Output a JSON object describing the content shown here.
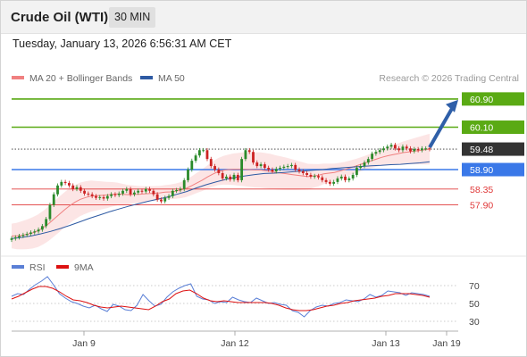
{
  "header": {
    "title": "Crude Oil (WTI)",
    "timeframe": "30 MIN"
  },
  "timestamp": "Tuesday, January 13, 2026 6:56:31 AM CET",
  "legend": [
    {
      "label": "MA 20 + Bollinger Bands",
      "color": "#f08080"
    },
    {
      "label": "MA 50",
      "color": "#2e5aa3"
    }
  ],
  "source": "Research © 2026 Trading Central",
  "rsi_legend": [
    {
      "label": "RSI",
      "color": "#5a7fd6"
    },
    {
      "label": "9MA",
      "color": "#dd1111"
    }
  ],
  "chart_data": [
    {
      "type": "candlestick",
      "title": "Crude Oil (WTI)",
      "timeframe": "30 MIN",
      "ylim": [
        56.5,
        61.2
      ],
      "x_tick_labels": [
        "Jan 9",
        "Jan 12",
        "Jan 13",
        "Jan 19"
      ],
      "levels": [
        {
          "value": 60.9,
          "label": "60.90",
          "kind": "resistance",
          "color": "#5aaa14"
        },
        {
          "value": 60.1,
          "label": "60.10",
          "kind": "resistance",
          "color": "#5aaa14"
        },
        {
          "value": 59.48,
          "label": "59.48",
          "kind": "last price",
          "color": "#333333"
        },
        {
          "value": 58.9,
          "label": "58.90",
          "kind": "pivot",
          "color": "#3a78e8"
        },
        {
          "value": 58.35,
          "label": "58.35",
          "kind": "support",
          "color": "#e03a3a"
        },
        {
          "value": 57.9,
          "label": "57.90",
          "kind": "support",
          "color": "#e03a3a"
        }
      ],
      "close": [
        56.95,
        56.98,
        57.02,
        57.05,
        57.08,
        57.12,
        57.15,
        57.2,
        57.3,
        57.5,
        57.9,
        58.2,
        58.45,
        58.55,
        58.52,
        58.45,
        58.35,
        58.4,
        58.3,
        58.22,
        58.2,
        58.15,
        58.1,
        58.12,
        58.08,
        58.15,
        58.2,
        58.18,
        58.22,
        58.3,
        58.35,
        58.2,
        58.25,
        58.3,
        58.28,
        58.35,
        58.3,
        58.2,
        58.05,
        58.0,
        58.1,
        58.15,
        58.3,
        58.32,
        58.35,
        58.6,
        58.9,
        59.15,
        59.3,
        59.45,
        59.45,
        59.2,
        59.0,
        58.9,
        58.8,
        58.65,
        58.7,
        58.62,
        58.75,
        58.6,
        59.2,
        59.45,
        59.4,
        59.1,
        59.0,
        59.05,
        58.95,
        58.9,
        58.85,
        58.92,
        58.95,
        58.98,
        59.0,
        59.03,
        58.9,
        58.85,
        58.8,
        58.75,
        58.7,
        58.72,
        58.68,
        58.6,
        58.55,
        58.5,
        58.55,
        58.65,
        58.7,
        58.6,
        58.65,
        58.75,
        58.95,
        59.0,
        59.1,
        59.2,
        59.35,
        59.4,
        59.45,
        59.5,
        59.55,
        59.6,
        59.5,
        59.45,
        59.55,
        59.5,
        59.42,
        59.48,
        59.45,
        59.5,
        59.5,
        59.48
      ],
      "ma20": [
        57.02,
        57.02,
        57.04,
        57.07,
        57.11,
        57.17,
        57.26,
        57.37,
        57.5,
        57.63,
        57.76,
        57.88,
        57.98,
        58.06,
        58.11,
        58.15,
        58.16,
        58.17,
        58.18,
        58.2,
        58.21,
        58.2,
        58.19,
        58.2,
        58.2,
        58.21,
        58.22,
        58.23,
        58.24,
        58.26,
        58.27,
        58.29,
        58.32,
        58.37,
        58.44,
        58.52,
        58.6,
        58.69,
        58.77,
        58.84,
        58.88,
        58.9,
        58.91,
        58.91,
        58.91,
        58.9,
        58.89,
        58.89,
        58.87,
        58.85,
        58.82,
        58.8,
        58.78,
        58.76,
        58.74,
        58.72,
        58.7,
        58.72,
        58.74,
        58.78,
        58.8,
        58.82,
        58.86,
        58.9,
        58.95,
        59.0,
        59.05,
        59.1,
        59.15,
        59.2,
        59.25,
        59.29,
        59.32,
        59.35,
        59.38,
        59.4,
        59.42,
        59.44,
        59.46,
        59.48
      ],
      "ma50": [
        56.95,
        56.98,
        57.02,
        57.08,
        57.15,
        57.23,
        57.32,
        57.42,
        57.52,
        57.61,
        57.7,
        57.78,
        57.86,
        57.93,
        58.0,
        58.06,
        58.12,
        58.2,
        58.28,
        58.38,
        58.47,
        58.55,
        58.62,
        58.68,
        58.72,
        58.76,
        58.79,
        58.8,
        58.82,
        58.84,
        58.86,
        58.88,
        58.9,
        58.93,
        58.95,
        58.97,
        58.99,
        59.01,
        59.02,
        59.04,
        59.05,
        59.07,
        59.09,
        59.12
      ]
    },
    {
      "type": "line",
      "title": "RSI",
      "yticks": [
        30,
        50,
        70
      ],
      "ylim": [
        20,
        80
      ],
      "series": [
        {
          "name": "RSI",
          "color": "#5a7fd6",
          "values": [
            58,
            61,
            60,
            66,
            71,
            75,
            80,
            71,
            61,
            56,
            52,
            50,
            47,
            45,
            48,
            44,
            41,
            49,
            47,
            43,
            42,
            48,
            60,
            53,
            47,
            49,
            57,
            63,
            67,
            70,
            72,
            58,
            55,
            54,
            50,
            52,
            51,
            57,
            54,
            52,
            51,
            56,
            53,
            50,
            51,
            49,
            48,
            42,
            40,
            35,
            42,
            46,
            48,
            47,
            50,
            51,
            54,
            53,
            52,
            55,
            60,
            57,
            59,
            64,
            63,
            62,
            59,
            62,
            61,
            60,
            58
          ]
        },
        {
          "name": "9MA",
          "color": "#dd1111",
          "values": [
            55,
            58,
            62,
            66,
            69,
            69,
            67,
            63,
            58,
            54,
            53,
            51,
            48,
            46,
            45,
            46,
            47,
            46,
            45,
            44,
            43,
            47,
            52,
            55,
            61,
            64,
            65,
            61,
            56,
            53,
            52,
            53,
            52,
            51,
            51,
            51,
            51,
            51,
            50,
            48,
            45,
            43,
            42,
            42,
            43,
            45,
            47,
            48,
            50,
            51,
            53,
            54,
            55,
            56,
            58,
            59,
            61,
            61,
            61,
            60,
            59,
            57
          ]
        }
      ]
    }
  ]
}
